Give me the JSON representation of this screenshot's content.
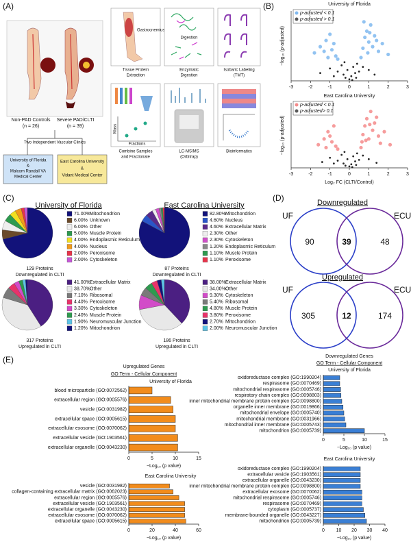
{
  "figure": {
    "panel_labels": [
      "(A)",
      "(B)",
      "(C)",
      "(D)",
      "(E)"
    ]
  },
  "panel_a": {
    "controls": "Non-PAD Controls",
    "controls_n": "(n = 26)",
    "clti": "Severe PAD/CLTI",
    "clti_n": "(n = 39)",
    "clinics": "Two Independent Vascular Clinics",
    "site_uf": [
      "University of Florida",
      "&",
      "Malcom Randall VA",
      "Medical Center"
    ],
    "site_ecu": [
      "East Carolina University",
      "&",
      "Vidant Medical Center"
    ],
    "gastrocnemius": "Gastrocnemius",
    "digestion": "Digestion",
    "mass": "Mass",
    "fractions": "Fractions",
    "steps": [
      [
        "Tissue Protein",
        "Extraction"
      ],
      [
        "Enzymatic",
        "Digestion"
      ],
      [
        "Isobaric Labeling",
        "(TMT)"
      ],
      [
        "Combine Samples",
        "and Fractionate"
      ],
      [
        "LC-MS/MS",
        "(Orbitrap)"
      ],
      [
        "Bioinformatics"
      ]
    ]
  },
  "panel_c": {
    "headers": [
      "University of Florida",
      "East Carolina University"
    ]
  },
  "panel_d": {
    "venn": [
      {
        "title": "Downregulated",
        "left": "UF",
        "right": "ECU",
        "values": [
          90,
          39,
          48
        ]
      },
      {
        "title": "Upregulated",
        "left": "UF",
        "right": "ECU",
        "values": [
          305,
          12,
          174
        ]
      }
    ]
  },
  "panel_e": {
    "up_header": [
      "Upregulated Genes",
      "GO Term - Cellular Component"
    ],
    "down_header": [
      "Downregulated Genes",
      "GO Term - Cellular Component"
    ]
  },
  "chart_data": [
    {
      "type": "scatter",
      "title": "University of Florida",
      "ylabel": "−log₁₀ (p-adjusted)",
      "xlim": [
        -3,
        3
      ],
      "xticks": [
        -3,
        -2,
        -1,
        0,
        1,
        2,
        3
      ],
      "ylim": [
        0,
        4.5
      ],
      "series": [
        {
          "name": "p-adjusted < 0.1",
          "color": "#4a9be8",
          "x": [
            -1.8,
            -1.5,
            -1.2,
            -1.0,
            -0.9,
            -0.8,
            -0.7,
            -1.3,
            -0.6,
            0.6,
            0.7,
            0.8,
            0.9,
            1.0,
            1.1,
            1.2,
            1.3,
            1.5,
            1.7,
            2.0,
            0.75,
            0.95,
            1.4,
            -1.1,
            1.05
          ],
          "values": [
            1.8,
            2.2,
            2.6,
            3.0,
            2.0,
            2.4,
            1.6,
            1.9,
            1.4,
            1.5,
            2.1,
            2.8,
            3.2,
            2.5,
            3.6,
            2.2,
            2.9,
            1.9,
            2.4,
            1.7,
            3.8,
            1.8,
            2.6,
            1.5,
            3.1
          ]
        },
        {
          "name": "p-adjusted > 0.1",
          "color": "#111111",
          "x": [
            -1.5,
            -1.0,
            -0.6,
            -0.4,
            -0.3,
            -0.2,
            -0.1,
            0,
            0.1,
            0.2,
            0.3,
            0.4,
            0.5,
            0.7,
            1.0,
            1.3,
            -0.8,
            0.15,
            -0.25,
            0.35
          ],
          "values": [
            0.5,
            0.8,
            0.6,
            1.0,
            0.4,
            0.2,
            0.7,
            0.1,
            0.3,
            0.9,
            0.5,
            1.1,
            0.6,
            0.9,
            0.7,
            0.4,
            0.3,
            0.05,
            1.2,
            0.2
          ]
        }
      ]
    },
    {
      "type": "scatter",
      "title": "East Carolina University",
      "ylabel": "−log₁₀ (p-adjusted)",
      "xlabel": "Log₂ FC (CLTI/Control)",
      "xlim": [
        -3,
        3
      ],
      "xticks": [
        -3,
        -2,
        -1,
        0,
        1,
        2,
        3
      ],
      "ylim": [
        0,
        4.5
      ],
      "series": [
        {
          "name": "p-adjusted < 0.1",
          "color": "#f05a5a",
          "x": [
            -1.6,
            -1.3,
            -1.1,
            -0.9,
            -0.8,
            -0.7,
            -0.6,
            -1.0,
            0.6,
            0.7,
            0.8,
            0.9,
            1.0,
            1.1,
            1.2,
            1.3,
            1.5,
            1.6,
            1.8,
            2.1,
            0.85,
            1.05,
            1.4,
            -1.2,
            0.65
          ],
          "values": [
            1.6,
            2.0,
            2.5,
            1.8,
            2.9,
            1.5,
            1.3,
            2.2,
            1.4,
            2.3,
            2.9,
            3.4,
            2.0,
            3.9,
            2.6,
            3.1,
            2.2,
            1.7,
            2.5,
            1.6,
            1.9,
            3.0,
            3.5,
            1.4,
            1.8
          ]
        },
        {
          "name": "p-adjusted> 0.1",
          "color": "#111111",
          "x": [
            -1.4,
            -1.0,
            -0.6,
            -0.4,
            -0.3,
            -0.2,
            -0.1,
            0,
            0.1,
            0.2,
            0.3,
            0.4,
            0.5,
            0.7,
            1.0,
            1.4,
            -0.8,
            0.15,
            -0.25,
            0.35
          ],
          "values": [
            0.4,
            0.7,
            0.5,
            0.9,
            0.3,
            0.15,
            0.6,
            0.1,
            0.25,
            0.8,
            0.45,
            1.0,
            0.55,
            0.85,
            0.6,
            0.35,
            0.3,
            0.05,
            1.1,
            0.2
          ]
        }
      ]
    },
    {
      "type": "pie",
      "categories": [
        "Mitochondrion",
        "Unknown",
        "Other",
        "Muscle Protein",
        "Endoplasmic Reticulum",
        "Nucleus",
        "Peroxisome",
        "Cytoskeleton"
      ],
      "values": [
        71.0,
        6.0,
        6.0,
        5.0,
        4.0,
        4.0,
        2.0,
        2.0
      ],
      "value_labels": [
        "71.00%",
        "6.00%",
        "6.00%",
        "5.00%",
        "4.00%",
        "4.00%",
        "2.00%",
        "2.00%"
      ],
      "colors": [
        "#12127a",
        "#6b4a2a",
        "#eeeeee",
        "#2e9a4f",
        "#f2e020",
        "#f29a1a",
        "#e8334a",
        "#c656d8"
      ],
      "caption": [
        "129 Proteins",
        "Downregulated in CLTI"
      ]
    },
    {
      "type": "pie",
      "categories": [
        "Mitochondrion",
        "Nucleus",
        "Extracellular Matrix",
        "Other",
        "Cytoskeleton",
        "Endoplasmic Reticulum",
        "Muscle Protein",
        "Peroxisome"
      ],
      "values": [
        82.8,
        4.6,
        4.6,
        2.3,
        2.3,
        1.2,
        1.1,
        1.1
      ],
      "value_labels": [
        "82.80%",
        "4.60%",
        "4.60%",
        "2.30%",
        "2.30%",
        "1.20%",
        "1.10%",
        "1.10%"
      ],
      "colors": [
        "#12127a",
        "#2a55c8",
        "#5a2a8a",
        "#eeeeee",
        "#d04fc8",
        "#888888",
        "#2e9a4f",
        "#e8334a"
      ],
      "caption": [
        "87 Proteins",
        "Downregulated in CLTI"
      ]
    },
    {
      "type": "pie",
      "categories": [
        "Extracellular Matrix",
        "Other",
        "Ribosomal",
        "Peroxisome",
        "Cytoskeleton",
        "Muscle Protein",
        "Neuromuscular Junction",
        "Mitochondrion"
      ],
      "values": [
        41.0,
        38.7,
        7.1,
        4.4,
        3.3,
        2.4,
        1.9,
        1.2
      ],
      "value_labels": [
        "41.00%",
        "38.70%",
        "7.10%",
        "4.40%",
        "3.30%",
        "2.40%",
        "1.90%",
        "1.20%"
      ],
      "colors": [
        "#4b1f82",
        "#e8e8e8",
        "#7a7a7a",
        "#e8336a",
        "#d24cc8",
        "#2e9a4f",
        "#5cc3e6",
        "#12127a"
      ],
      "caption": [
        "317 Proteins",
        "Upregulated in CLTI"
      ]
    },
    {
      "type": "pie",
      "categories": [
        "Extracellular Matrix",
        "Other",
        "Cytoskeleton",
        "Ribosomal",
        "Muscle Protein",
        "Peroxisome",
        "Mitochondrion",
        "Neuromuscular Junction"
      ],
      "values": [
        38.0,
        34.0,
        9.3,
        5.4,
        4.8,
        3.8,
        2.7,
        2.0
      ],
      "value_labels": [
        "38.00%",
        "34.00%",
        "9.30%",
        "5.40%",
        "4.80%",
        "3.80%",
        "2.70%",
        "2.00%"
      ],
      "colors": [
        "#4b1f82",
        "#e8e8e8",
        "#d24cc8",
        "#7a7a7a",
        "#2e9a4f",
        "#e8336a",
        "#12127a",
        "#5cc3e6"
      ],
      "caption": [
        "186 Proteins",
        "Upregulated in CLTI"
      ]
    },
    {
      "type": "barh",
      "title": "University of Florida",
      "xlabel": "−Log₁₀ (p value)",
      "color": "#f28c1c",
      "categories": [
        "blood microparticle (GO:0072562)",
        "extracellular region (GO:0005576)",
        "vesicle (GO:0031982)",
        "extracellular space (GO:0005615)",
        "extracellular exosome (GO:0070062)",
        "extracellular vesicle (GO:1903561)",
        "extracellular organelle (GO:0043230)"
      ],
      "values": [
        5,
        9,
        9.5,
        10,
        10,
        10.5,
        10.5
      ],
      "xlim": [
        0,
        15
      ],
      "xticks": [
        0,
        5,
        10,
        15
      ]
    },
    {
      "type": "barh",
      "title": "East Carolina University",
      "xlabel": "−Log₁₀ (p value)",
      "color": "#f28c1c",
      "categories": [
        "vesicle (GO:0031982)",
        "collagen-containing extracellular matrix (GO:0062023)",
        "extracellular region (GO:0005576)",
        "extracellular vesicle (GO:1903561)",
        "extracellular organelle (GO:0043230)",
        "extracellular exosome (GO:0070062)",
        "extracellular space (GO:0005615)"
      ],
      "values": [
        35,
        38,
        43,
        48,
        48,
        48,
        49
      ],
      "xlim": [
        0,
        60
      ],
      "xticks": [
        0,
        20,
        40,
        60
      ]
    },
    {
      "type": "barh",
      "title": "University of Florida",
      "xlabel": "−Log₁₀ (p value)",
      "color": "#3a7fd5",
      "categories": [
        "oxidoreductase complex (GO:1990204)",
        "respirasome (GO:0070469)",
        "mitochondrial respirasome (GO:0005746)",
        "respiratory chain complex (GO:0098803)",
        "inner mitochondrial membrane protein complex (GO:0098800)",
        "organelle inner membrane (GO:0019866)",
        "mitochondrial envelope (GO:0005740)",
        "mitochondrial membrane (GO:0031966)",
        "mitochondrial inner membrane (GO:0005743)",
        "mitochondrion (GO:0005739)"
      ],
      "values": [
        4,
        4,
        4.2,
        4.3,
        4.5,
        4.8,
        5,
        5.2,
        5.5,
        10
      ],
      "xlim": [
        0,
        15
      ],
      "xticks": [
        0,
        5,
        10,
        15
      ]
    },
    {
      "type": "barh",
      "title": "East Carolina University",
      "xlabel": "−Log₁₀ (p value)",
      "color": "#3a7fd5",
      "categories": [
        "oxidoreductase complex (GO:1990204)",
        "extracellular vesicle (GO:1903561)",
        "extracellular organelle (GO:0043230)",
        "inner mitochondrial membrane protein complex (GO:0098800)",
        "extracellular exosome (GO:0070062)",
        "mitochondrial respirasome (GO:0005746)",
        "respirasome (GO:0070469)",
        "cytoplasm (GO:0005737)",
        "membrane-bounded organelle (GO:0043227)",
        "mitochondrion (GO:0005739)"
      ],
      "values": [
        24,
        24,
        24,
        24,
        25,
        25,
        25,
        26,
        27,
        28
      ],
      "xlim": [
        0,
        40
      ],
      "xticks": [
        0,
        10,
        20,
        30,
        40
      ]
    }
  ]
}
